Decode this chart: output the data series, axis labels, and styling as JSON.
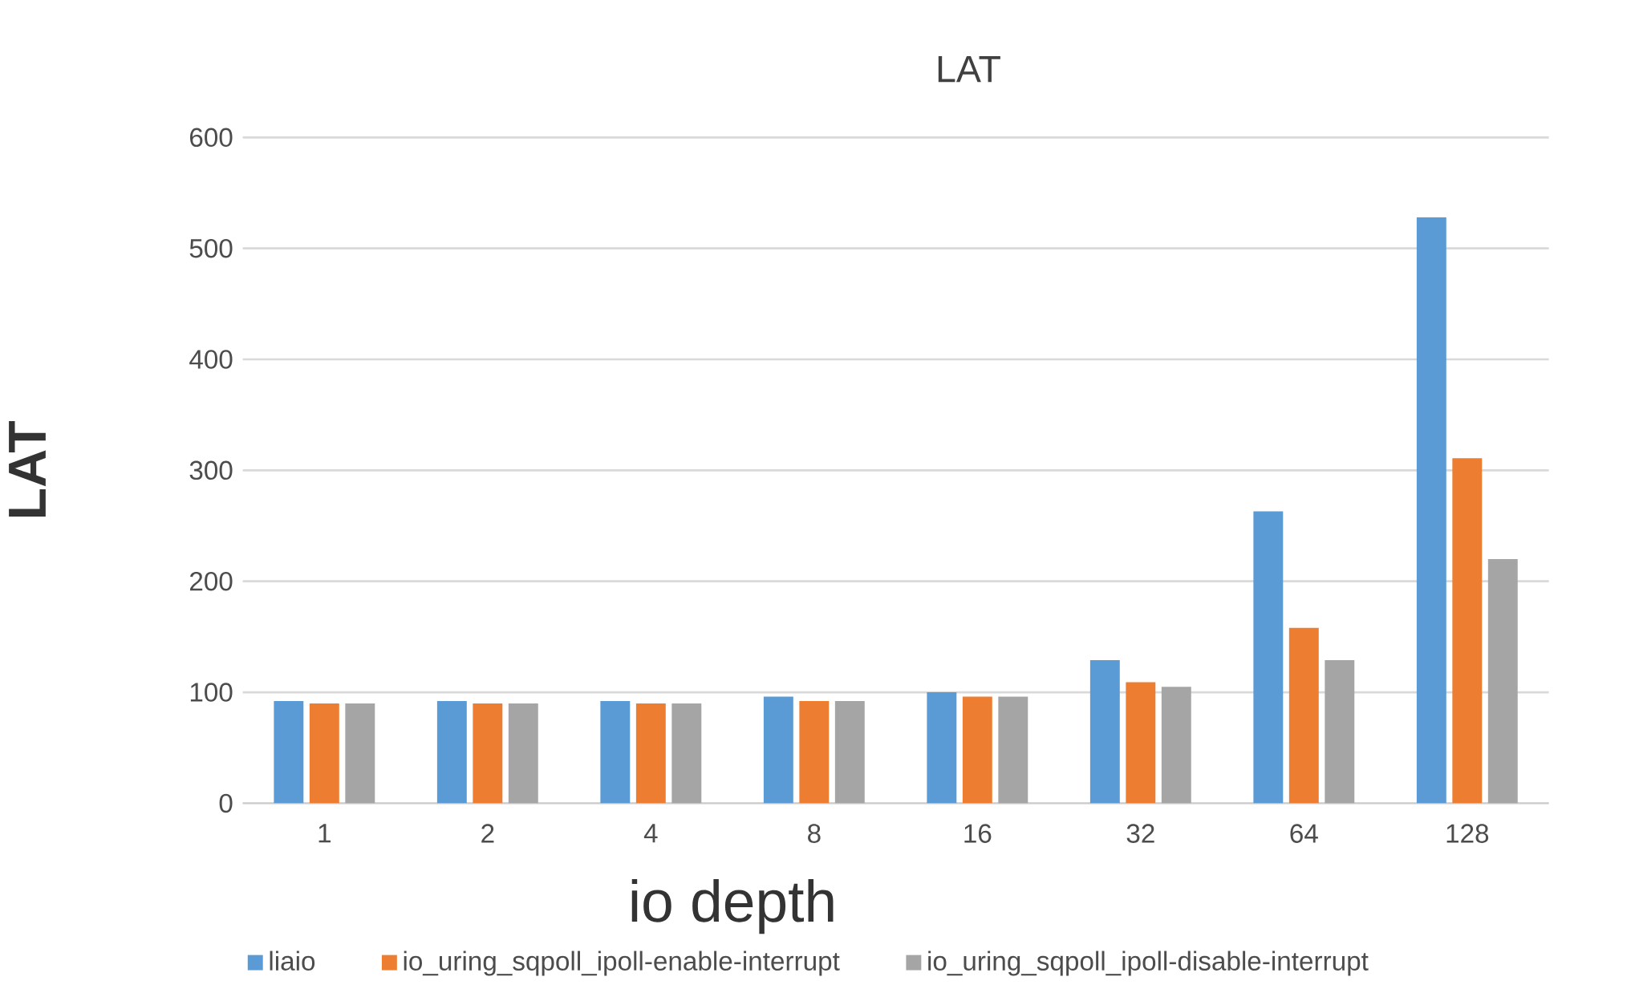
{
  "chart_data": {
    "type": "bar",
    "title": "LAT",
    "xlabel": "io depth",
    "ylabel": "LAT",
    "categories": [
      "1",
      "2",
      "4",
      "8",
      "16",
      "32",
      "64",
      "128"
    ],
    "series": [
      {
        "name": "liaio",
        "color": "#5b9bd5",
        "values": [
          92,
          92,
          92,
          96,
          100,
          129,
          263,
          528
        ]
      },
      {
        "name": "io_uring_sqpoll_ipoll-enable-interrupt",
        "color": "#ed7d31",
        "values": [
          90,
          90,
          90,
          92,
          96,
          109,
          158,
          311
        ]
      },
      {
        "name": "io_uring_sqpoll_ipoll-disable-interrupt",
        "color": "#a5a5a5",
        "values": [
          90,
          90,
          90,
          92,
          96,
          105,
          129,
          220
        ]
      }
    ],
    "ylim": [
      0,
      600
    ],
    "yticks": [
      0,
      100,
      200,
      300,
      400,
      500,
      600
    ],
    "grid": "y",
    "legend": "bottom"
  }
}
